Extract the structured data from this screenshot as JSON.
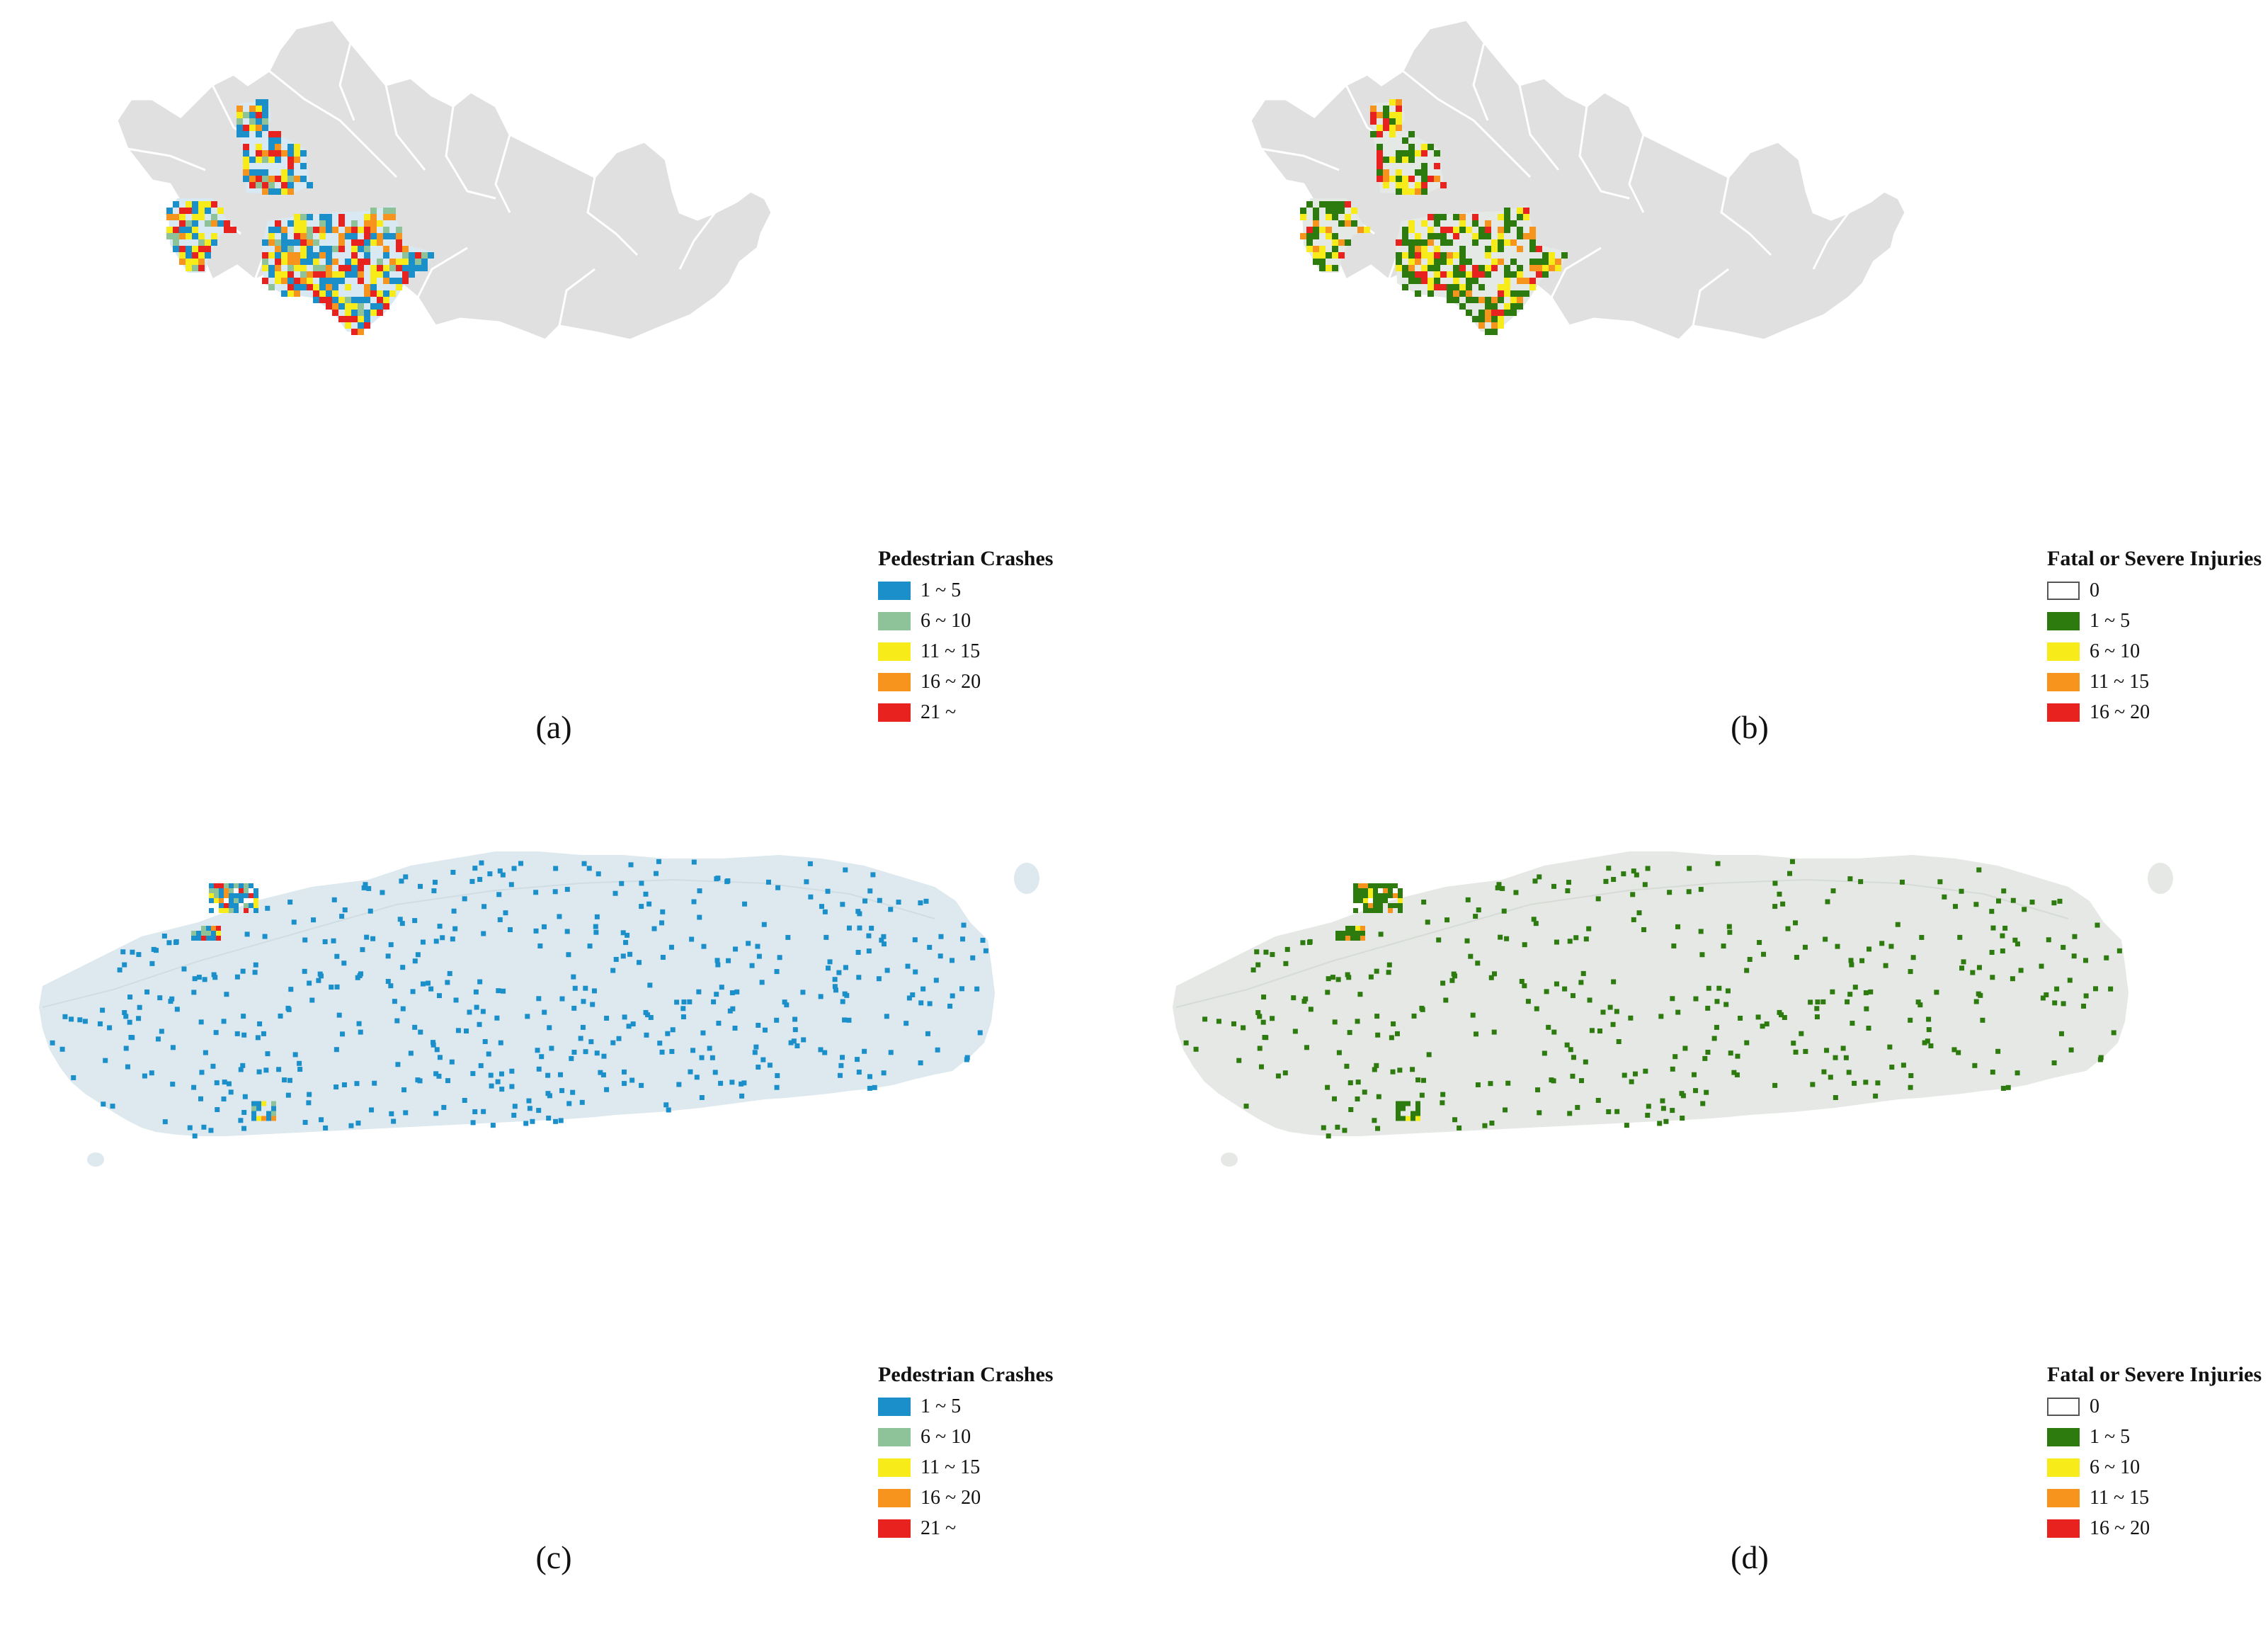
{
  "colors": {
    "seoul_land": "#e0e0e0",
    "boundary": "#ffffff",
    "region_blue_bg": "#d8e9f3",
    "region_gray_bg": "#e5e9e6",
    "jeju_blue_bg": "#dde9ee",
    "jeju_gray_bg": "#e5e8e4",
    "pedestrian_1_5": "#1b8fc9",
    "pedestrian_6_10": "#8ec39a",
    "pedestrian_11_15": "#f7ec1a",
    "pedestrian_16_20": "#f7941d",
    "pedestrian_21_plus": "#e8231f",
    "severe_0": "#ffffff",
    "severe_1_5": "#2d7a0f",
    "severe_6_10": "#f7ec1a",
    "severe_11_15": "#f7941d",
    "severe_16_20": "#e8231f"
  },
  "panels": [
    {
      "id": "a",
      "caption": "(a)",
      "legend": {
        "title": "Pedestrian Crashes",
        "items": [
          {
            "label": "1 ~ 5",
            "color": "#1b8fc9"
          },
          {
            "label": "6 ~ 10",
            "color": "#8ec39a"
          },
          {
            "label": "11 ~ 15",
            "color": "#f7ec1a"
          },
          {
            "label": "16 ~ 20",
            "color": "#f7941d"
          },
          {
            "label": "21 ~",
            "color": "#e8231f"
          }
        ]
      }
    },
    {
      "id": "b",
      "caption": "(b)",
      "legend": {
        "title": "Fatal or Severe Injuries",
        "items": [
          {
            "label": "0",
            "color": "#ffffff"
          },
          {
            "label": "1 ~ 5",
            "color": "#2d7a0f"
          },
          {
            "label": "6 ~ 10",
            "color": "#f7ec1a"
          },
          {
            "label": "11 ~ 15",
            "color": "#f7941d"
          },
          {
            "label": "16 ~ 20",
            "color": "#e8231f"
          }
        ]
      }
    },
    {
      "id": "c",
      "caption": "(c)",
      "legend": {
        "title": "Pedestrian Crashes",
        "items": [
          {
            "label": "1 ~ 5",
            "color": "#1b8fc9"
          },
          {
            "label": "6 ~ 10",
            "color": "#8ec39a"
          },
          {
            "label": "11 ~ 15",
            "color": "#f7ec1a"
          },
          {
            "label": "16 ~ 20",
            "color": "#f7941d"
          },
          {
            "label": "21 ~",
            "color": "#e8231f"
          }
        ]
      }
    },
    {
      "id": "d",
      "caption": "(d)",
      "legend": {
        "title": "Fatal or Severe Injuries",
        "items": [
          {
            "label": "0",
            "color": "#ffffff"
          },
          {
            "label": "1 ~ 5",
            "color": "#2d7a0f"
          },
          {
            "label": "6 ~ 10",
            "color": "#f7ec1a"
          },
          {
            "label": "11 ~ 15",
            "color": "#f7941d"
          },
          {
            "label": "16 ~ 20",
            "color": "#e8231f"
          }
        ]
      }
    }
  ]
}
